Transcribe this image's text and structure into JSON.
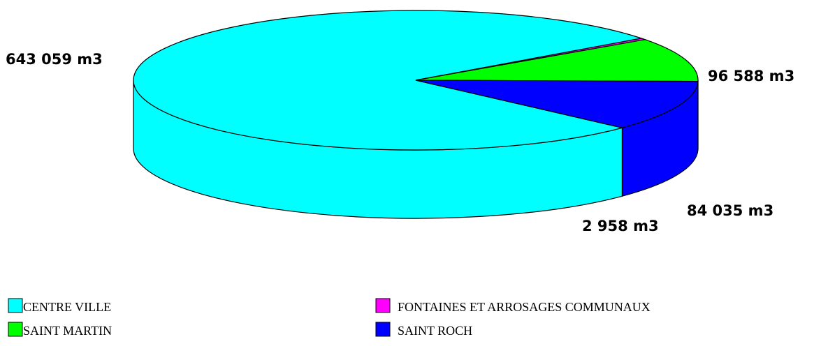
{
  "chart_data": {
    "type": "pie",
    "categories": [
      "CENTRE VILLE",
      "SAINT MARTIN",
      "FONTAINES ET ARROSAGES COMMUNAUX",
      "SAINT ROCH"
    ],
    "values": [
      643059,
      84035,
      2958,
      96588
    ],
    "data_labels": [
      "643 059 m3",
      "84 035 m3",
      "2 958 m3",
      "96 588 m3"
    ],
    "colors": [
      "#00ffff",
      "#00ff00",
      "#ff00ff",
      "#0000ff"
    ],
    "unit": "m3",
    "legend": [
      {
        "label": "CENTRE VILLE",
        "color": "#00ffff"
      },
      {
        "label": "FONTAINES ET ARROSAGES COMMUNAUX",
        "color": "#ff00ff"
      },
      {
        "label": "SAINT MARTIN",
        "color": "#00ff00"
      },
      {
        "label": "SAINT ROCH",
        "color": "#0000ff"
      }
    ],
    "legend_position": "bottom",
    "style": "3d"
  }
}
